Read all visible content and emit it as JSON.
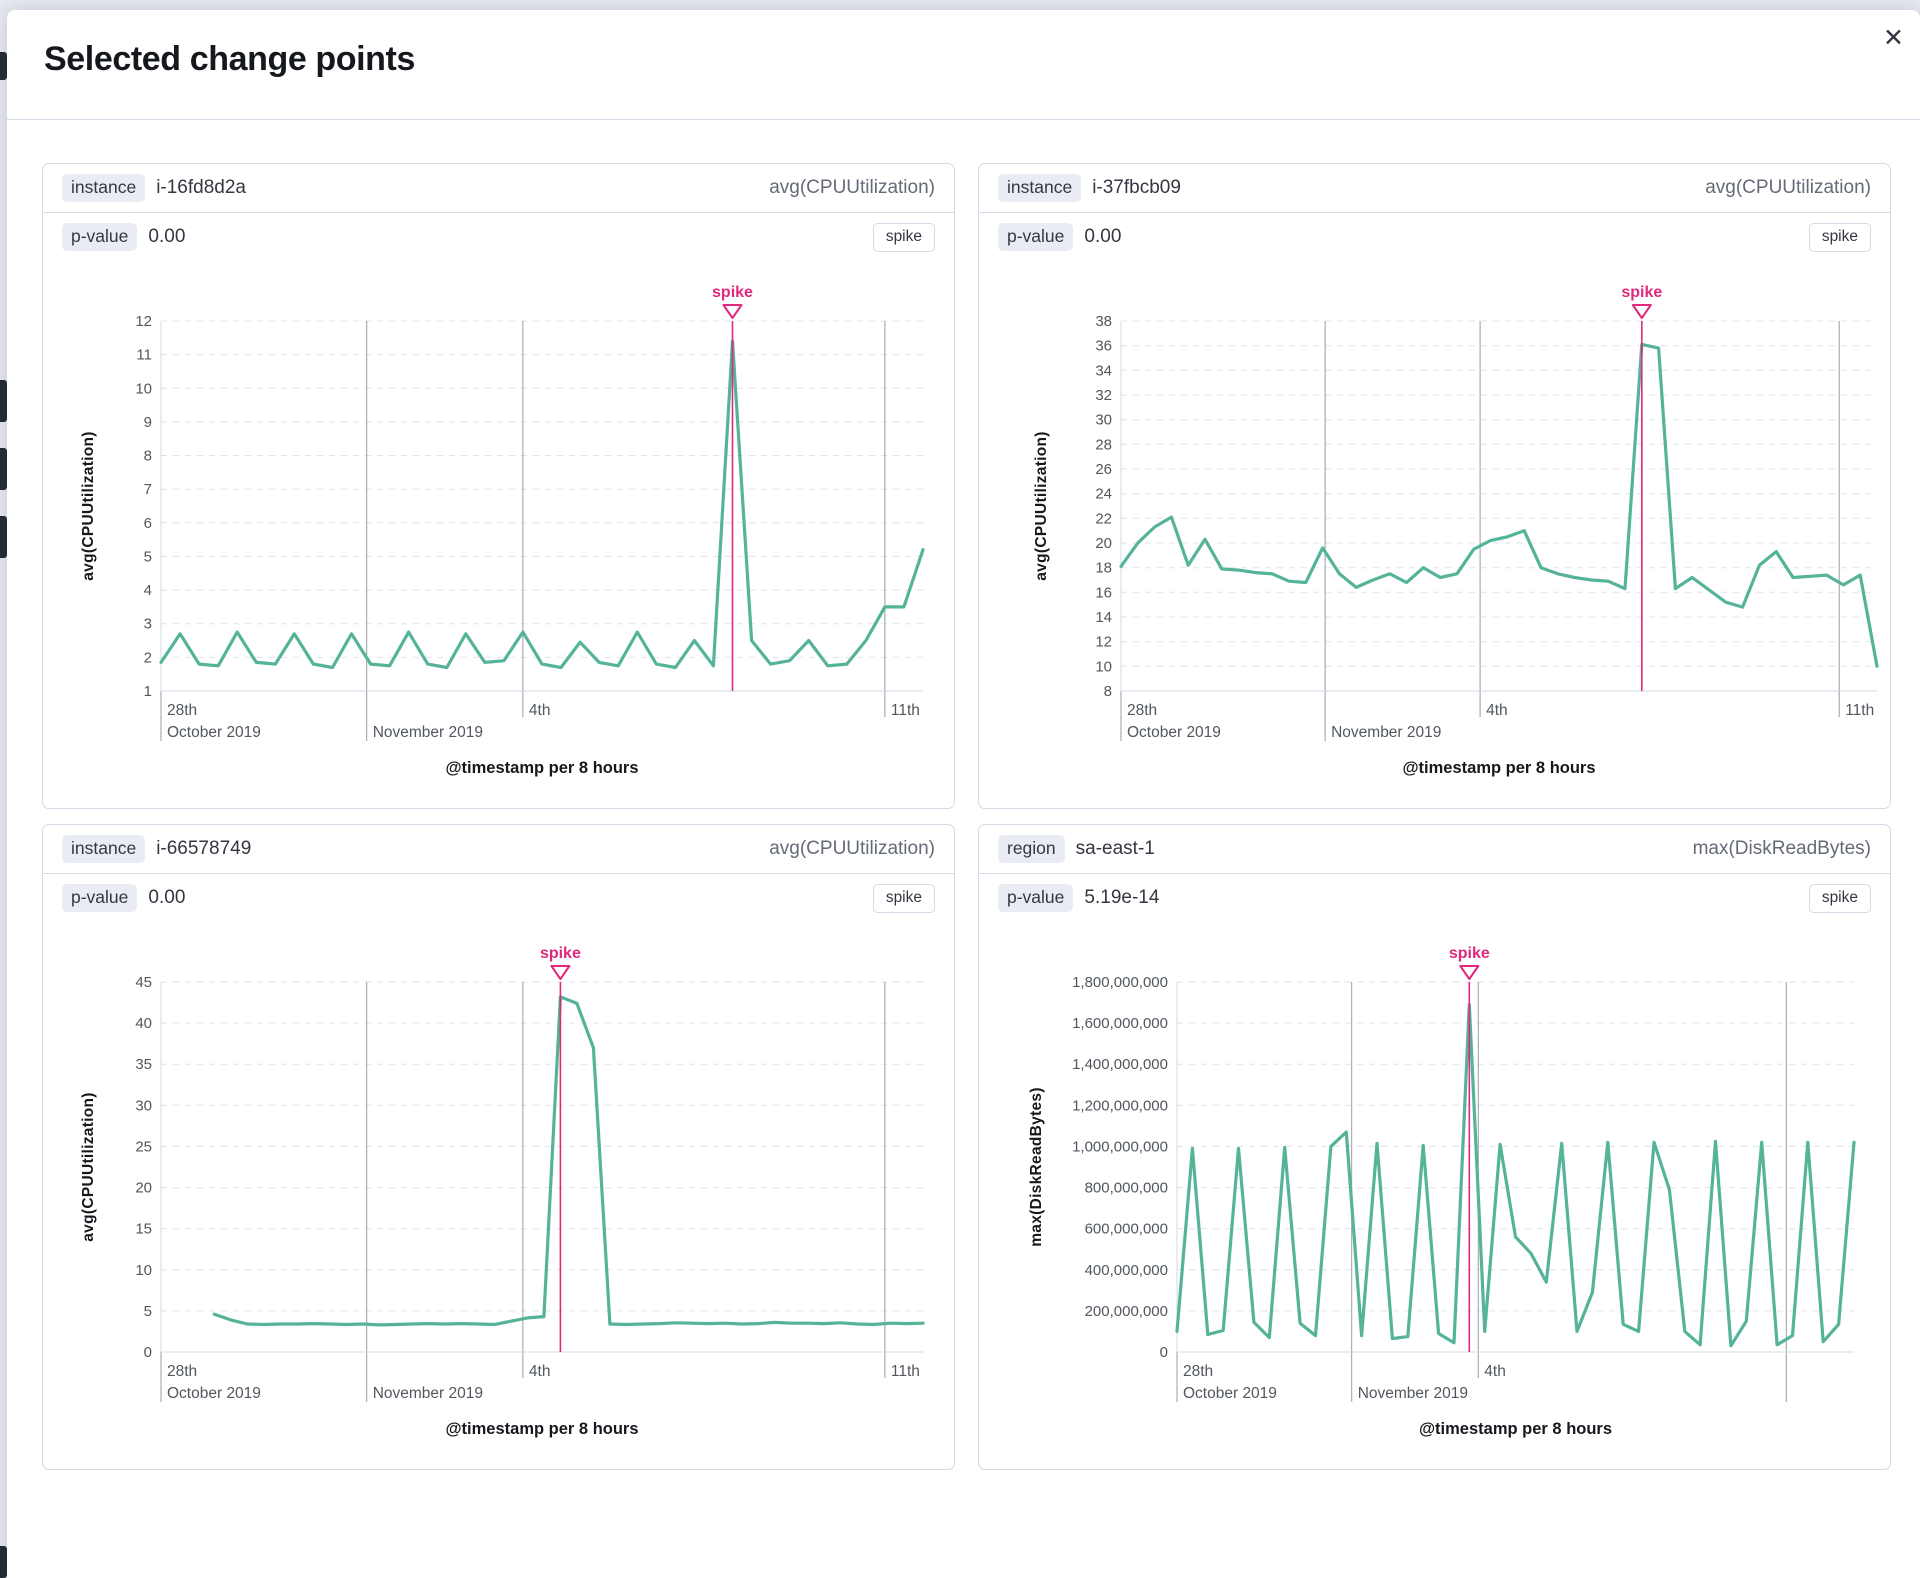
{
  "modal": {
    "title": "Selected change points",
    "close_icon": "✕"
  },
  "colors": {
    "series": "#54b399",
    "annotation": "#e0297c",
    "axis": "#d3dae6",
    "guide": "#979da6",
    "gridline": "#dfe3ec"
  },
  "panels": [
    {
      "key_label": "instance",
      "key_value": "i-16fd8d2a",
      "agg": "avg(CPUUtilization)",
      "p_label": "p-value",
      "p_value": "0.00",
      "change_type": "spike"
    },
    {
      "key_label": "instance",
      "key_value": "i-37fbcb09",
      "agg": "avg(CPUUtilization)",
      "p_label": "p-value",
      "p_value": "0.00",
      "change_type": "spike"
    },
    {
      "key_label": "instance",
      "key_value": "i-66578749",
      "agg": "avg(CPUUtilization)",
      "p_label": "p-value",
      "p_value": "0.00",
      "change_type": "spike"
    },
    {
      "key_label": "region",
      "key_value": "sa-east-1",
      "agg": "max(DiskReadBytes)",
      "p_label": "p-value",
      "p_value": "5.19e-14",
      "change_type": "spike"
    }
  ],
  "chart_data": [
    {
      "type": "line",
      "ylabel": "avg(CPUUtilization)",
      "xlabel": "@timestamp per 8 hours",
      "annotation": "spike",
      "ylim": [
        1,
        12
      ],
      "yticks": [
        1,
        2,
        3,
        4,
        5,
        6,
        7,
        8,
        9,
        10,
        11,
        12
      ],
      "ytick_labels": [
        "1",
        "2",
        "3",
        "4",
        "5",
        "6",
        "7",
        "8",
        "9",
        "10",
        "11",
        "12"
      ],
      "x_start": 0,
      "x_end": 1,
      "values": [
        1.85,
        2.7,
        1.8,
        1.75,
        2.75,
        1.85,
        1.8,
        2.7,
        1.8,
        1.7,
        2.7,
        1.8,
        1.75,
        2.75,
        1.8,
        1.7,
        2.7,
        1.85,
        1.9,
        2.75,
        1.8,
        1.7,
        2.45,
        1.85,
        1.75,
        2.75,
        1.8,
        1.7,
        2.5,
        1.75,
        11.4,
        2.5,
        1.8,
        1.9,
        2.5,
        1.75,
        1.8,
        2.5,
        3.5,
        3.5,
        5.2
      ],
      "spike_index": 30,
      "day_labels": [
        {
          "text": "28th",
          "f": 0
        },
        {
          "text": "4th",
          "f": 0.475
        },
        {
          "text": "11th",
          "f": 0.95
        }
      ],
      "month_labels": [
        {
          "text": "October 2019",
          "f": 0
        },
        {
          "text": "November 2019",
          "f": 0.27
        }
      ],
      "guides": [
        {
          "f": 0,
          "line": false,
          "depth": 2
        },
        {
          "f": 0.27,
          "line": true,
          "depth": 2
        },
        {
          "f": 0.475,
          "line": true,
          "depth": 1
        },
        {
          "f": 0.95,
          "line": true,
          "depth": 1
        }
      ],
      "layout": {
        "ml": 118,
        "mr": 31,
        "ty": 45
      }
    },
    {
      "type": "line",
      "ylabel": "avg(CPUUtilization)",
      "xlabel": "@timestamp per 8 hours",
      "annotation": "spike",
      "ylim": [
        8,
        38
      ],
      "yticks": [
        8,
        10,
        12,
        14,
        16,
        18,
        20,
        22,
        24,
        26,
        28,
        30,
        32,
        34,
        36,
        38
      ],
      "ytick_labels": [
        "8",
        "10",
        "12",
        "14",
        "16",
        "18",
        "20",
        "22",
        "24",
        "26",
        "28",
        "30",
        "32",
        "34",
        "36",
        "38"
      ],
      "x_start": 0,
      "x_end": 1,
      "values": [
        18.1,
        20,
        21.3,
        22.1,
        18.2,
        20.3,
        17.9,
        17.8,
        17.6,
        17.5,
        16.9,
        16.8,
        19.6,
        17.5,
        16.4,
        17,
        17.5,
        16.8,
        18,
        17.2,
        17.5,
        19.5,
        20.2,
        20.5,
        21,
        18,
        17.5,
        17.2,
        17,
        16.9,
        16.3,
        36.1,
        35.8,
        16.3,
        17.2,
        16.2,
        15.2,
        14.8,
        18.2,
        19.3,
        17.2,
        17.3,
        17.4,
        16.6,
        17.4,
        10
      ],
      "spike_index": 31,
      "day_labels": [
        {
          "text": "28th",
          "f": 0
        },
        {
          "text": "4th",
          "f": 0.475
        },
        {
          "text": "11th",
          "f": 0.95
        }
      ],
      "month_labels": [
        {
          "text": "October 2019",
          "f": 0
        },
        {
          "text": "November 2019",
          "f": 0.27
        }
      ],
      "guides": [
        {
          "f": 0,
          "line": false,
          "depth": 2
        },
        {
          "f": 0.27,
          "line": true,
          "depth": 2
        },
        {
          "f": 0.475,
          "line": true,
          "depth": 1
        },
        {
          "f": 0.95,
          "line": true,
          "depth": 1
        }
      ],
      "layout": {
        "ml": 142,
        "mr": 13,
        "ty": 62
      }
    },
    {
      "type": "line",
      "ylabel": "avg(CPUUtilization)",
      "xlabel": "@timestamp per 8 hours",
      "annotation": "spike",
      "ylim": [
        0,
        45
      ],
      "yticks": [
        0,
        5,
        10,
        15,
        20,
        25,
        30,
        35,
        40,
        45
      ],
      "ytick_labels": [
        "0",
        "5",
        "10",
        "15",
        "20",
        "25",
        "30",
        "35",
        "40",
        "45"
      ],
      "x_start": 0.07,
      "x_end": 1,
      "values": [
        4.6,
        3.9,
        3.4,
        3.35,
        3.4,
        3.4,
        3.45,
        3.4,
        3.35,
        3.4,
        3.3,
        3.35,
        3.4,
        3.45,
        3.4,
        3.45,
        3.4,
        3.35,
        3.75,
        4.15,
        4.3,
        43.2,
        42.4,
        37,
        3.4,
        3.35,
        3.4,
        3.45,
        3.55,
        3.5,
        3.45,
        3.5,
        3.4,
        3.45,
        3.6,
        3.5,
        3.5,
        3.45,
        3.55,
        3.4,
        3.35,
        3.5,
        3.45,
        3.5
      ],
      "spike_index": 21,
      "day_labels": [
        {
          "text": "28th",
          "f": 0
        },
        {
          "text": "4th",
          "f": 0.475
        },
        {
          "text": "11th",
          "f": 0.95
        }
      ],
      "month_labels": [
        {
          "text": "October 2019",
          "f": 0
        },
        {
          "text": "November 2019",
          "f": 0.27
        }
      ],
      "guides": [
        {
          "f": 0,
          "line": false,
          "depth": 2
        },
        {
          "f": 0.27,
          "line": true,
          "depth": 2
        },
        {
          "f": 0.475,
          "line": true,
          "depth": 1
        },
        {
          "f": 0.95,
          "line": true,
          "depth": 1
        }
      ],
      "layout": {
        "ml": 118,
        "mr": 31,
        "ty": 45
      }
    },
    {
      "type": "line",
      "ylabel": "max(DiskReadBytes)",
      "xlabel": "@timestamp per 8 hours",
      "annotation": "spike",
      "ylim": [
        0,
        1800000000
      ],
      "yticks": [
        0,
        200000000,
        400000000,
        600000000,
        800000000,
        1000000000,
        1200000000,
        1400000000,
        1600000000,
        1800000000
      ],
      "ytick_labels": [
        "0",
        "200,000,000",
        "400,000,000",
        "600,000,000",
        "800,000,000",
        "1,000,000,000",
        "1,200,000,000",
        "1,400,000,000",
        "1,600,000,000",
        "1,800,000,000"
      ],
      "x_start": 0,
      "x_end": 1,
      "values": [
        100000000,
        990000000,
        85000000,
        105000000,
        990000000,
        145000000,
        70000000,
        995000000,
        140000000,
        80000000,
        1000000000,
        1070000000,
        80000000,
        1015000000,
        65000000,
        75000000,
        1005000000,
        90000000,
        45000000,
        1690000000,
        100000000,
        1010000000,
        560000000,
        480000000,
        340000000,
        1015000000,
        100000000,
        290000000,
        1020000000,
        135000000,
        100000000,
        1020000000,
        790000000,
        100000000,
        35000000,
        1025000000,
        30000000,
        150000000,
        1020000000,
        35000000,
        80000000,
        1020000000,
        50000000,
        135000000,
        1020000000
      ],
      "spike_index": 19,
      "day_labels": [
        {
          "text": "28th",
          "f": 0
        },
        {
          "text": "4th",
          "f": 0.445
        }
      ],
      "month_labels": [
        {
          "text": "October 2019",
          "f": 0
        },
        {
          "text": "November 2019",
          "f": 0.258
        }
      ],
      "guides": [
        {
          "f": 0,
          "line": false,
          "depth": 2
        },
        {
          "f": 0.258,
          "line": true,
          "depth": 2
        },
        {
          "f": 0.445,
          "line": true,
          "depth": 1
        },
        {
          "f": 0.9,
          "line": true,
          "depth": 2
        }
      ],
      "layout": {
        "ml": 198,
        "mr": 36,
        "ty": 57
      }
    }
  ]
}
